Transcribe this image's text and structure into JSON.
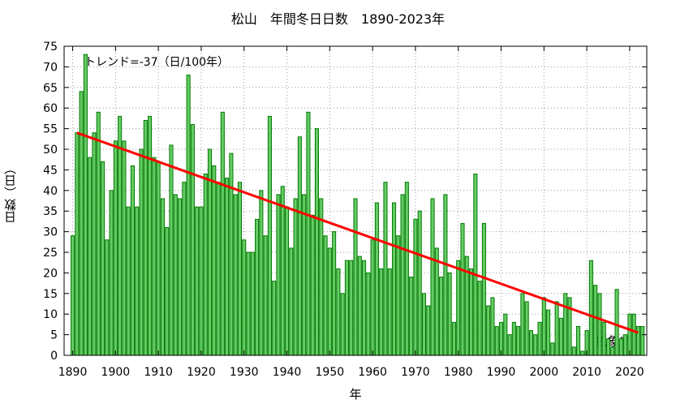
{
  "chart_data": {
    "type": "bar",
    "title": "松山　年間冬日日数　1890-2023年",
    "xlabel": "年",
    "ylabel": "日数（日）",
    "ylim": [
      0,
      75
    ],
    "xlim": [
      1888,
      2024
    ],
    "yticks": [
      0,
      5,
      10,
      15,
      20,
      25,
      30,
      35,
      40,
      45,
      50,
      55,
      60,
      65,
      70,
      75
    ],
    "xticks": [
      1890,
      1900,
      1910,
      1920,
      1930,
      1940,
      1950,
      1960,
      1970,
      1980,
      1990,
      2000,
      2010,
      2020
    ],
    "grid": true,
    "bar_color": "#66cc66",
    "bar_edge_color": "#007a00",
    "trend_color": "#ff0000",
    "trend_label": "トレンド=-37（日/100年）",
    "trend": {
      "x": [
        1891,
        2022
      ],
      "y": [
        54,
        5.5
      ]
    },
    "annotation": "気象庁",
    "years_start": 1890,
    "values": [
      29,
      54,
      64,
      73,
      48,
      54,
      59,
      47,
      28,
      40,
      52,
      58,
      52,
      36,
      46,
      36,
      50,
      57,
      58,
      48,
      47,
      38,
      31,
      51,
      39,
      38,
      42,
      68,
      56,
      36,
      36,
      44,
      50,
      46,
      42,
      59,
      43,
      49,
      39,
      42,
      28,
      25,
      25,
      33,
      40,
      29,
      58,
      18,
      39,
      41,
      36,
      26,
      38,
      53,
      39,
      59,
      34,
      55,
      38,
      29,
      26,
      30,
      21,
      15,
      23,
      23,
      38,
      24,
      23,
      20,
      28,
      37,
      21,
      42,
      21,
      37,
      29,
      39,
      42,
      19,
      33,
      35,
      15,
      12,
      38,
      26,
      19,
      39,
      20,
      8,
      23,
      32,
      24,
      21,
      44,
      18,
      32,
      12,
      14,
      7,
      8,
      10,
      5,
      8,
      7,
      15,
      13,
      6,
      5,
      8,
      14,
      11,
      3,
      13,
      9,
      15,
      14,
      2,
      7,
      1,
      6,
      23,
      17,
      15,
      8,
      4,
      2,
      16,
      4,
      5,
      10,
      10,
      7,
      7
    ]
  }
}
